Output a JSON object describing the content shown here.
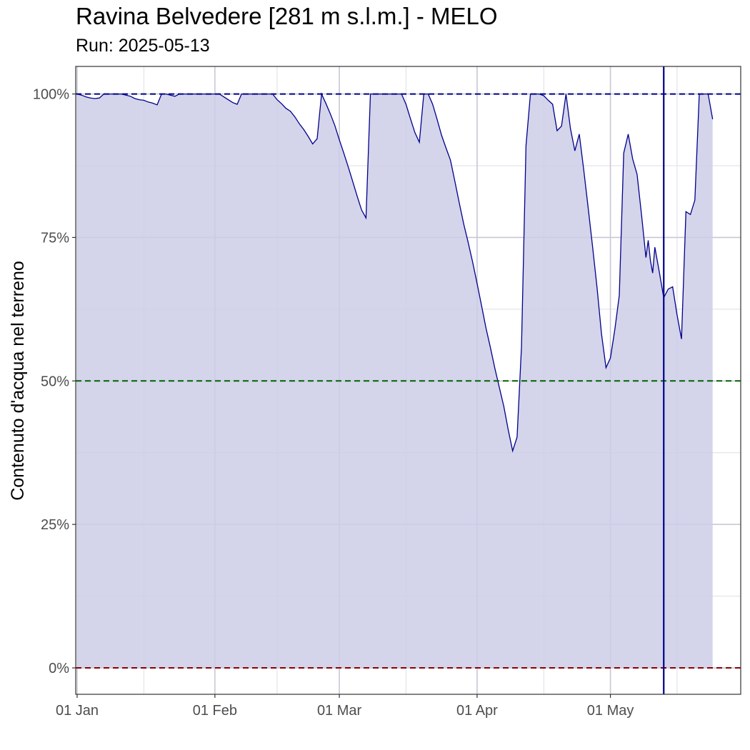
{
  "header": {
    "title": "Ravina Belvedere [281 m s.l.m.] - MELO",
    "subtitle": "Run: 2025-05-13"
  },
  "colors": {
    "fill": "#cccce8",
    "line": "#00008b",
    "ref_high": "#00008b",
    "ref_mid": "#006400",
    "ref_low": "#8b0000",
    "grid_major": "#c8c8d8",
    "grid_minor": "#dedee8",
    "border": "#333333"
  },
  "chart_data": {
    "type": "area",
    "ylabel": "Contenuto d'acqua nel terreno",
    "xlabel": "",
    "xlim": [
      "2025-01-01",
      "2025-05-30"
    ],
    "ylim": [
      -4.6,
      104.8
    ],
    "x_ticks": [
      {
        "date": "2025-01-01",
        "label": "01 Jan"
      },
      {
        "date": "2025-02-01",
        "label": "01 Feb"
      },
      {
        "date": "2025-03-01",
        "label": "01 Mar"
      },
      {
        "date": "2025-04-01",
        "label": "01 Apr"
      },
      {
        "date": "2025-05-01",
        "label": "01 May"
      }
    ],
    "x_minor_ticks": [
      "2025-01-16",
      "2025-02-15",
      "2025-03-16",
      "2025-04-16",
      "2025-05-16"
    ],
    "y_ticks": [
      {
        "value": 0,
        "label": "0%"
      },
      {
        "value": 25,
        "label": "25%"
      },
      {
        "value": 50,
        "label": "50%"
      },
      {
        "value": 75,
        "label": "75%"
      },
      {
        "value": 100,
        "label": "100%"
      }
    ],
    "y_minor_ticks": [
      12.5,
      37.5,
      62.5,
      87.5
    ],
    "reference_lines": [
      {
        "value": 100,
        "style": "dashed",
        "color": "#00008b"
      },
      {
        "value": 50,
        "style": "dashed",
        "color": "#006400"
      },
      {
        "value": 0,
        "style": "dashed",
        "color": "#8b0000"
      }
    ],
    "run_date_line": "2025-05-13",
    "series": [
      {
        "points": [
          [
            "2025-01-01",
            100
          ],
          [
            "2025-01-02",
            99.8
          ],
          [
            "2025-01-03",
            99.5
          ],
          [
            "2025-01-04",
            99.3
          ],
          [
            "2025-01-05",
            99.2
          ],
          [
            "2025-01-06",
            99.3
          ],
          [
            "2025-01-07",
            100
          ],
          [
            "2025-01-09",
            100
          ],
          [
            "2025-01-11",
            100
          ],
          [
            "2025-01-13",
            99.6
          ],
          [
            "2025-01-14",
            99.2
          ],
          [
            "2025-01-15",
            99.0
          ],
          [
            "2025-01-16",
            98.9
          ],
          [
            "2025-01-17",
            98.6
          ],
          [
            "2025-01-18",
            98.4
          ],
          [
            "2025-01-19",
            98.1
          ],
          [
            "2025-01-20",
            100
          ],
          [
            "2025-01-21",
            100
          ],
          [
            "2025-01-22",
            99.8
          ],
          [
            "2025-01-23",
            99.6
          ],
          [
            "2025-01-24",
            100
          ],
          [
            "2025-01-26",
            100
          ],
          [
            "2025-01-28",
            100
          ],
          [
            "2025-01-30",
            100
          ],
          [
            "2025-02-01",
            100
          ],
          [
            "2025-02-02",
            100
          ],
          [
            "2025-02-03",
            99.5
          ],
          [
            "2025-02-04",
            99.0
          ],
          [
            "2025-02-05",
            98.5
          ],
          [
            "2025-02-06",
            98.2
          ],
          [
            "2025-02-07",
            100
          ],
          [
            "2025-02-09",
            100
          ],
          [
            "2025-02-11",
            100
          ],
          [
            "2025-02-14",
            100
          ],
          [
            "2025-02-15",
            99.0
          ],
          [
            "2025-02-16",
            98.3
          ],
          [
            "2025-02-17",
            97.5
          ],
          [
            "2025-02-18",
            97.0
          ],
          [
            "2025-02-19",
            96.0
          ],
          [
            "2025-02-20",
            94.8
          ],
          [
            "2025-02-21",
            93.8
          ],
          [
            "2025-02-22",
            92.6
          ],
          [
            "2025-02-23",
            91.3
          ],
          [
            "2025-02-24",
            92.2
          ],
          [
            "2025-02-25",
            100
          ],
          [
            "2025-02-26",
            98.3
          ],
          [
            "2025-02-27",
            96.5
          ],
          [
            "2025-02-28",
            94.5
          ],
          [
            "2025-03-01",
            92.0
          ],
          [
            "2025-03-02",
            89.7
          ],
          [
            "2025-03-03",
            87.3
          ],
          [
            "2025-03-04",
            84.8
          ],
          [
            "2025-03-05",
            82.2
          ],
          [
            "2025-03-06",
            79.8
          ],
          [
            "2025-03-07",
            78.4
          ],
          [
            "2025-03-08",
            100
          ],
          [
            "2025-03-10",
            100
          ],
          [
            "2025-03-12",
            100
          ],
          [
            "2025-03-14",
            100
          ],
          [
            "2025-03-15",
            100
          ],
          [
            "2025-03-16",
            98.2
          ],
          [
            "2025-03-17",
            95.7
          ],
          [
            "2025-03-18",
            93.3
          ],
          [
            "2025-03-19",
            91.6
          ],
          [
            "2025-03-20",
            100
          ],
          [
            "2025-03-21",
            100
          ],
          [
            "2025-03-22",
            98.2
          ],
          [
            "2025-03-23",
            95.6
          ],
          [
            "2025-03-24",
            92.8
          ],
          [
            "2025-03-25",
            90.6
          ],
          [
            "2025-03-26",
            88.5
          ],
          [
            "2025-03-27",
            84.8
          ],
          [
            "2025-03-28",
            81.0
          ],
          [
            "2025-03-29",
            77.3
          ],
          [
            "2025-03-30",
            74.1
          ],
          [
            "2025-03-31",
            70.7
          ],
          [
            "2025-04-01",
            67.0
          ],
          [
            "2025-04-02",
            63.1
          ],
          [
            "2025-04-03",
            59.2
          ],
          [
            "2025-04-04",
            55.8
          ],
          [
            "2025-04-05",
            52.2
          ],
          [
            "2025-04-06",
            48.9
          ],
          [
            "2025-04-07",
            45.6
          ],
          [
            "2025-04-08",
            41.5
          ],
          [
            "2025-04-09",
            37.8
          ],
          [
            "2025-04-10",
            40.2
          ],
          [
            "2025-04-11",
            56.0
          ],
          [
            "2025-04-12",
            91.0
          ],
          [
            "2025-04-13",
            100
          ],
          [
            "2025-04-14",
            100
          ],
          [
            "2025-04-15",
            100
          ],
          [
            "2025-04-16",
            99.7
          ],
          [
            "2025-04-17",
            98.9
          ],
          [
            "2025-04-18",
            98.2
          ],
          [
            "2025-04-19",
            93.6
          ],
          [
            "2025-04-20",
            94.4
          ],
          [
            "2025-04-21",
            100
          ],
          [
            "2025-04-22",
            94.0
          ],
          [
            "2025-04-23",
            90.1
          ],
          [
            "2025-04-24",
            93.0
          ],
          [
            "2025-04-25",
            86.8
          ],
          [
            "2025-04-26",
            80.1
          ],
          [
            "2025-04-27",
            73.3
          ],
          [
            "2025-04-28",
            66.2
          ],
          [
            "2025-04-29",
            58.2
          ],
          [
            "2025-04-30",
            52.3
          ],
          [
            "2025-05-01",
            54.0
          ],
          [
            "2025-05-02",
            59.0
          ],
          [
            "2025-05-03",
            64.9
          ],
          [
            "2025-05-04",
            89.7
          ],
          [
            "2025-05-05",
            93.0
          ],
          [
            "2025-05-06",
            88.7
          ],
          [
            "2025-05-07",
            86.0
          ],
          [
            "2025-05-08",
            79.0
          ],
          [
            "2025-05-09",
            71.5
          ],
          [
            "2025-05-09.5",
            74.5
          ],
          [
            "2025-05-10",
            71.0
          ],
          [
            "2025-05-10.5",
            68.8
          ],
          [
            "2025-05-11",
            73.3
          ],
          [
            "2025-05-12",
            69.0
          ],
          [
            "2025-05-13",
            64.5
          ],
          [
            "2025-05-14",
            66.0
          ],
          [
            "2025-05-15",
            66.4
          ],
          [
            "2025-05-16",
            61.5
          ],
          [
            "2025-05-17",
            57.3
          ],
          [
            "2025-05-18",
            79.5
          ],
          [
            "2025-05-19",
            79.0
          ],
          [
            "2025-05-20",
            81.5
          ],
          [
            "2025-05-21",
            100
          ],
          [
            "2025-05-22",
            100
          ],
          [
            "2025-05-23",
            100
          ],
          [
            "2025-05-24",
            95.6
          ]
        ]
      }
    ]
  }
}
